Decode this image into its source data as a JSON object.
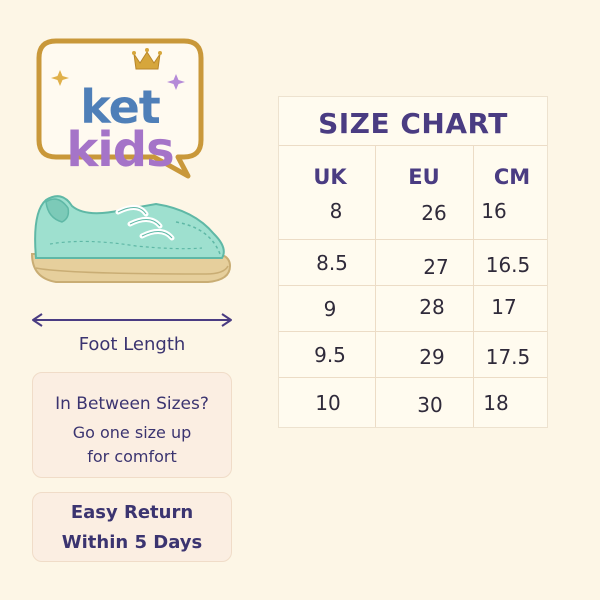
{
  "logo": {
    "line1": "ket",
    "line2": "kids",
    "icons": [
      "crown-icon",
      "sparkle-icon"
    ]
  },
  "foot_length_label": "Foot Length",
  "in_between": {
    "title": "In Between Sizes?",
    "body_line1": "Go one size up",
    "body_line2": "for comfort"
  },
  "returns": {
    "line1": "Easy Return",
    "line2": "Within 5 Days"
  },
  "size_chart": {
    "title": "SIZE CHART",
    "headers": [
      "UK",
      "EU",
      "CM"
    ],
    "rows": [
      [
        "8",
        "26",
        "16"
      ],
      [
        "8.5",
        "27",
        "16.5"
      ],
      [
        "9",
        "28",
        "17"
      ],
      [
        "9.5",
        "29",
        "17.5"
      ],
      [
        "10",
        "30",
        "18"
      ]
    ]
  },
  "colors": {
    "background": "#fdf6e6",
    "logo_frame": "#c9983a",
    "ket": "#4f7fb8",
    "kids": "#a574c8",
    "shoe": "#9ee0cf",
    "sole": "#e6cf9c",
    "text_navy": "#3b3470"
  }
}
